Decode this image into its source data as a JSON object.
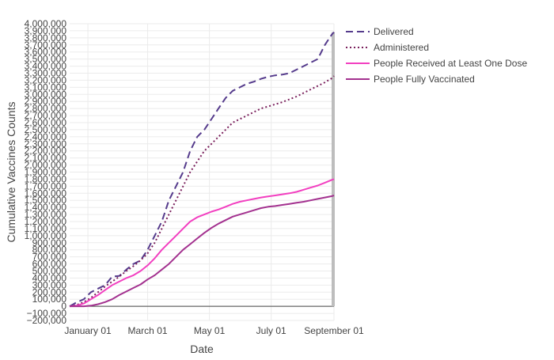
{
  "chart_data": {
    "type": "line",
    "title": "",
    "xlabel": "Date",
    "ylabel": "Cumulative Vaccines Counts",
    "x_tick_labels": [
      "January 01",
      "March 01",
      "May 01",
      "July 01",
      "September 01"
    ],
    "x_tick_dates": [
      "2021-01-01",
      "2021-03-01",
      "2021-05-01",
      "2021-07-01",
      "2021-09-01"
    ],
    "xlim": [
      "2020-12-14",
      "2021-09-01"
    ],
    "ylim": [
      -200000,
      4000000
    ],
    "y_tick_step": 100000,
    "y_tick_format": "thousands-comma",
    "grid": true,
    "legend_position": "top-right outside",
    "series": [
      {
        "name": "Delivered",
        "color": "#553b8c",
        "dash": "dash",
        "points": [
          [
            "2020-12-14",
            0
          ],
          [
            "2020-12-20",
            50000
          ],
          [
            "2020-12-28",
            100000
          ],
          [
            "2021-01-04",
            200000
          ],
          [
            "2021-01-11",
            250000
          ],
          [
            "2021-01-18",
            300000
          ],
          [
            "2021-01-25",
            420000
          ],
          [
            "2021-02-01",
            430000
          ],
          [
            "2021-02-08",
            520000
          ],
          [
            "2021-02-15",
            600000
          ],
          [
            "2021-02-22",
            650000
          ],
          [
            "2021-03-01",
            800000
          ],
          [
            "2021-03-08",
            1000000
          ],
          [
            "2021-03-15",
            1200000
          ],
          [
            "2021-03-22",
            1500000
          ],
          [
            "2021-03-29",
            1700000
          ],
          [
            "2021-04-05",
            1900000
          ],
          [
            "2021-04-12",
            2200000
          ],
          [
            "2021-04-19",
            2400000
          ],
          [
            "2021-04-26",
            2500000
          ],
          [
            "2021-05-03",
            2650000
          ],
          [
            "2021-05-10",
            2800000
          ],
          [
            "2021-05-17",
            2950000
          ],
          [
            "2021-05-24",
            3050000
          ],
          [
            "2021-05-31",
            3100000
          ],
          [
            "2021-06-07",
            3150000
          ],
          [
            "2021-06-14",
            3180000
          ],
          [
            "2021-06-21",
            3220000
          ],
          [
            "2021-06-28",
            3250000
          ],
          [
            "2021-07-05",
            3270000
          ],
          [
            "2021-07-12",
            3280000
          ],
          [
            "2021-07-19",
            3300000
          ],
          [
            "2021-07-26",
            3350000
          ],
          [
            "2021-08-02",
            3400000
          ],
          [
            "2021-08-09",
            3450000
          ],
          [
            "2021-08-16",
            3500000
          ],
          [
            "2021-08-23",
            3700000
          ],
          [
            "2021-08-30",
            3850000
          ],
          [
            "2021-09-01",
            3880000
          ]
        ]
      },
      {
        "name": "Administered",
        "color": "#7a1f5c",
        "dash": "dot",
        "points": [
          [
            "2020-12-14",
            0
          ],
          [
            "2020-12-21",
            20000
          ],
          [
            "2020-12-28",
            60000
          ],
          [
            "2021-01-04",
            120000
          ],
          [
            "2021-01-11",
            200000
          ],
          [
            "2021-01-18",
            280000
          ],
          [
            "2021-01-25",
            350000
          ],
          [
            "2021-02-01",
            420000
          ],
          [
            "2021-02-08",
            500000
          ],
          [
            "2021-02-15",
            570000
          ],
          [
            "2021-02-22",
            650000
          ],
          [
            "2021-03-01",
            750000
          ],
          [
            "2021-03-08",
            900000
          ],
          [
            "2021-03-15",
            1100000
          ],
          [
            "2021-03-22",
            1300000
          ],
          [
            "2021-03-29",
            1500000
          ],
          [
            "2021-04-05",
            1700000
          ],
          [
            "2021-04-12",
            1900000
          ],
          [
            "2021-04-19",
            2050000
          ],
          [
            "2021-04-26",
            2200000
          ],
          [
            "2021-05-03",
            2300000
          ],
          [
            "2021-05-10",
            2400000
          ],
          [
            "2021-05-17",
            2500000
          ],
          [
            "2021-05-24",
            2600000
          ],
          [
            "2021-05-31",
            2650000
          ],
          [
            "2021-06-07",
            2700000
          ],
          [
            "2021-06-14",
            2750000
          ],
          [
            "2021-06-21",
            2800000
          ],
          [
            "2021-06-28",
            2830000
          ],
          [
            "2021-07-05",
            2860000
          ],
          [
            "2021-07-12",
            2890000
          ],
          [
            "2021-07-19",
            2930000
          ],
          [
            "2021-07-26",
            2970000
          ],
          [
            "2021-08-02",
            3020000
          ],
          [
            "2021-08-09",
            3070000
          ],
          [
            "2021-08-16",
            3120000
          ],
          [
            "2021-08-23",
            3170000
          ],
          [
            "2021-08-30",
            3230000
          ],
          [
            "2021-09-01",
            3260000
          ]
        ]
      },
      {
        "name": "People Received at Least One Dose",
        "color": "#f23fc0",
        "dash": "solid",
        "points": [
          [
            "2020-12-14",
            0
          ],
          [
            "2020-12-21",
            10000
          ],
          [
            "2020-12-28",
            40000
          ],
          [
            "2021-01-04",
            100000
          ],
          [
            "2021-01-11",
            160000
          ],
          [
            "2021-01-18",
            230000
          ],
          [
            "2021-01-25",
            300000
          ],
          [
            "2021-02-01",
            350000
          ],
          [
            "2021-02-08",
            400000
          ],
          [
            "2021-02-15",
            440000
          ],
          [
            "2021-02-22",
            500000
          ],
          [
            "2021-03-01",
            580000
          ],
          [
            "2021-03-08",
            680000
          ],
          [
            "2021-03-15",
            800000
          ],
          [
            "2021-03-22",
            900000
          ],
          [
            "2021-03-29",
            1000000
          ],
          [
            "2021-04-05",
            1100000
          ],
          [
            "2021-04-12",
            1200000
          ],
          [
            "2021-04-19",
            1260000
          ],
          [
            "2021-04-26",
            1300000
          ],
          [
            "2021-05-03",
            1340000
          ],
          [
            "2021-05-10",
            1370000
          ],
          [
            "2021-05-17",
            1410000
          ],
          [
            "2021-05-24",
            1450000
          ],
          [
            "2021-05-31",
            1480000
          ],
          [
            "2021-06-07",
            1500000
          ],
          [
            "2021-06-14",
            1520000
          ],
          [
            "2021-06-21",
            1540000
          ],
          [
            "2021-06-28",
            1555000
          ],
          [
            "2021-07-05",
            1570000
          ],
          [
            "2021-07-12",
            1585000
          ],
          [
            "2021-07-19",
            1600000
          ],
          [
            "2021-07-26",
            1620000
          ],
          [
            "2021-08-02",
            1650000
          ],
          [
            "2021-08-09",
            1680000
          ],
          [
            "2021-08-16",
            1710000
          ],
          [
            "2021-08-23",
            1750000
          ],
          [
            "2021-08-30",
            1790000
          ],
          [
            "2021-09-01",
            1800000
          ]
        ]
      },
      {
        "name": "People Fully Vaccinated",
        "color": "#a3318f",
        "dash": "solid",
        "points": [
          [
            "2020-12-14",
            0
          ],
          [
            "2020-12-28",
            0
          ],
          [
            "2021-01-04",
            10000
          ],
          [
            "2021-01-11",
            30000
          ],
          [
            "2021-01-18",
            60000
          ],
          [
            "2021-01-25",
            100000
          ],
          [
            "2021-02-01",
            160000
          ],
          [
            "2021-02-08",
            210000
          ],
          [
            "2021-02-15",
            260000
          ],
          [
            "2021-02-22",
            310000
          ],
          [
            "2021-03-01",
            380000
          ],
          [
            "2021-03-08",
            440000
          ],
          [
            "2021-03-15",
            520000
          ],
          [
            "2021-03-22",
            600000
          ],
          [
            "2021-03-29",
            700000
          ],
          [
            "2021-04-05",
            800000
          ],
          [
            "2021-04-12",
            880000
          ],
          [
            "2021-04-19",
            960000
          ],
          [
            "2021-04-26",
            1040000
          ],
          [
            "2021-05-03",
            1110000
          ],
          [
            "2021-05-10",
            1170000
          ],
          [
            "2021-05-17",
            1220000
          ],
          [
            "2021-05-24",
            1270000
          ],
          [
            "2021-05-31",
            1300000
          ],
          [
            "2021-06-07",
            1330000
          ],
          [
            "2021-06-14",
            1360000
          ],
          [
            "2021-06-21",
            1390000
          ],
          [
            "2021-06-28",
            1410000
          ],
          [
            "2021-07-05",
            1420000
          ],
          [
            "2021-07-12",
            1435000
          ],
          [
            "2021-07-19",
            1450000
          ],
          [
            "2021-07-26",
            1465000
          ],
          [
            "2021-08-02",
            1480000
          ],
          [
            "2021-08-09",
            1500000
          ],
          [
            "2021-08-16",
            1520000
          ],
          [
            "2021-08-23",
            1540000
          ],
          [
            "2021-08-30",
            1560000
          ],
          [
            "2021-09-01",
            1570000
          ]
        ]
      }
    ]
  }
}
